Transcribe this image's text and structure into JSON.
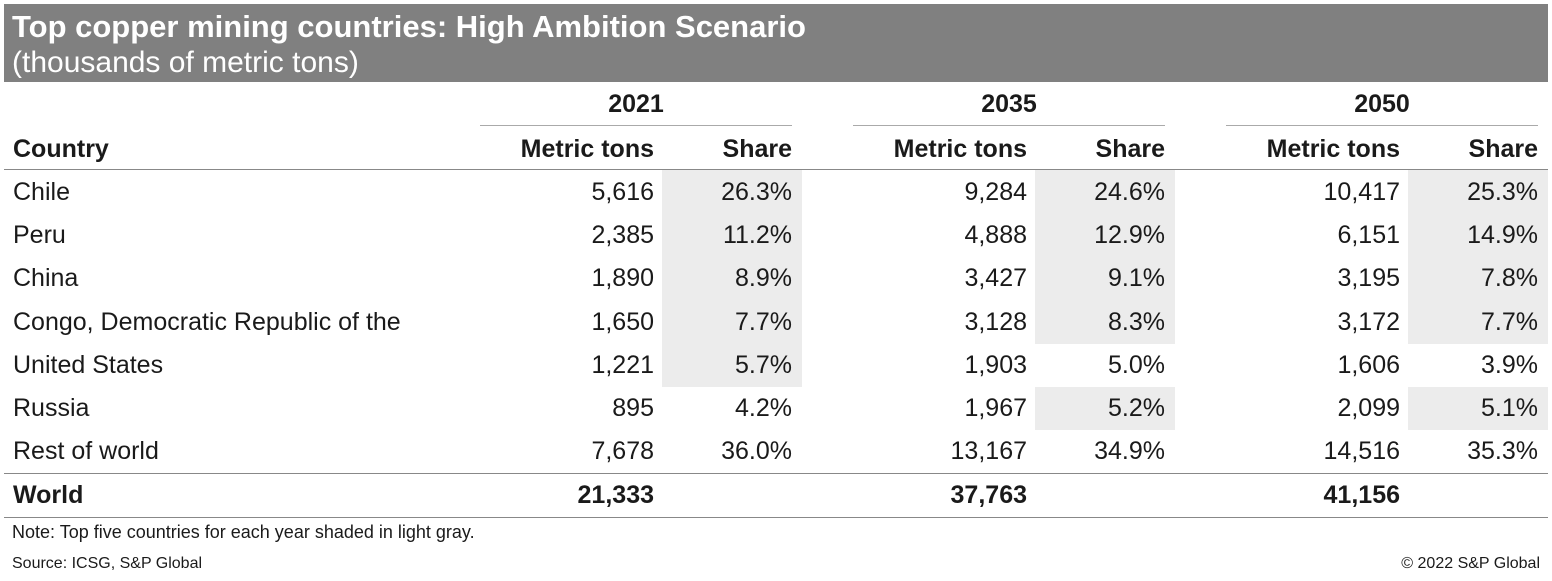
{
  "header": {
    "title": "Top copper mining countries: High Ambition Scenario",
    "subtitle": "(thousands of metric tons)"
  },
  "table": {
    "years": [
      "2021",
      "2035",
      "2050"
    ],
    "column_headers": [
      "Country",
      "Metric tons",
      "Share"
    ],
    "shade_color": "#ececec",
    "rows": [
      {
        "country": "Chile",
        "values": [
          [
            "5,616",
            "26.3%"
          ],
          [
            "9,284",
            "24.6%"
          ],
          [
            "10,417",
            "25.3%"
          ]
        ],
        "shaded": [
          true,
          true,
          true
        ]
      },
      {
        "country": "Peru",
        "values": [
          [
            "2,385",
            "11.2%"
          ],
          [
            "4,888",
            "12.9%"
          ],
          [
            "6,151",
            "14.9%"
          ]
        ],
        "shaded": [
          true,
          true,
          true
        ]
      },
      {
        "country": "China",
        "values": [
          [
            "1,890",
            "8.9%"
          ],
          [
            "3,427",
            "9.1%"
          ],
          [
            "3,195",
            "7.8%"
          ]
        ],
        "shaded": [
          true,
          true,
          true
        ]
      },
      {
        "country": "Congo, Democratic Republic of the",
        "values": [
          [
            "1,650",
            "7.7%"
          ],
          [
            "3,128",
            "8.3%"
          ],
          [
            "3,172",
            "7.7%"
          ]
        ],
        "shaded": [
          true,
          true,
          true
        ]
      },
      {
        "country": "United States",
        "values": [
          [
            "1,221",
            "5.7%"
          ],
          [
            "1,903",
            "5.0%"
          ],
          [
            "1,606",
            "3.9%"
          ]
        ],
        "shaded": [
          true,
          false,
          false
        ]
      },
      {
        "country": "Russia",
        "values": [
          [
            "895",
            "4.2%"
          ],
          [
            "1,967",
            "5.2%"
          ],
          [
            "2,099",
            "5.1%"
          ]
        ],
        "shaded": [
          false,
          true,
          true
        ]
      },
      {
        "country": "Rest of world",
        "values": [
          [
            "7,678",
            "36.0%"
          ],
          [
            "13,167",
            "34.9%"
          ],
          [
            "14,516",
            "35.3%"
          ]
        ],
        "shaded": [
          false,
          false,
          false
        ]
      }
    ],
    "total": {
      "label": "World",
      "values": [
        "21,333",
        "37,763",
        "41,156"
      ]
    }
  },
  "footer": {
    "note": "Note: Top five countries for each year shaded in light gray.",
    "source": "Source: ICSG, S&P Global",
    "copyright": "© 2022 S&P Global"
  }
}
